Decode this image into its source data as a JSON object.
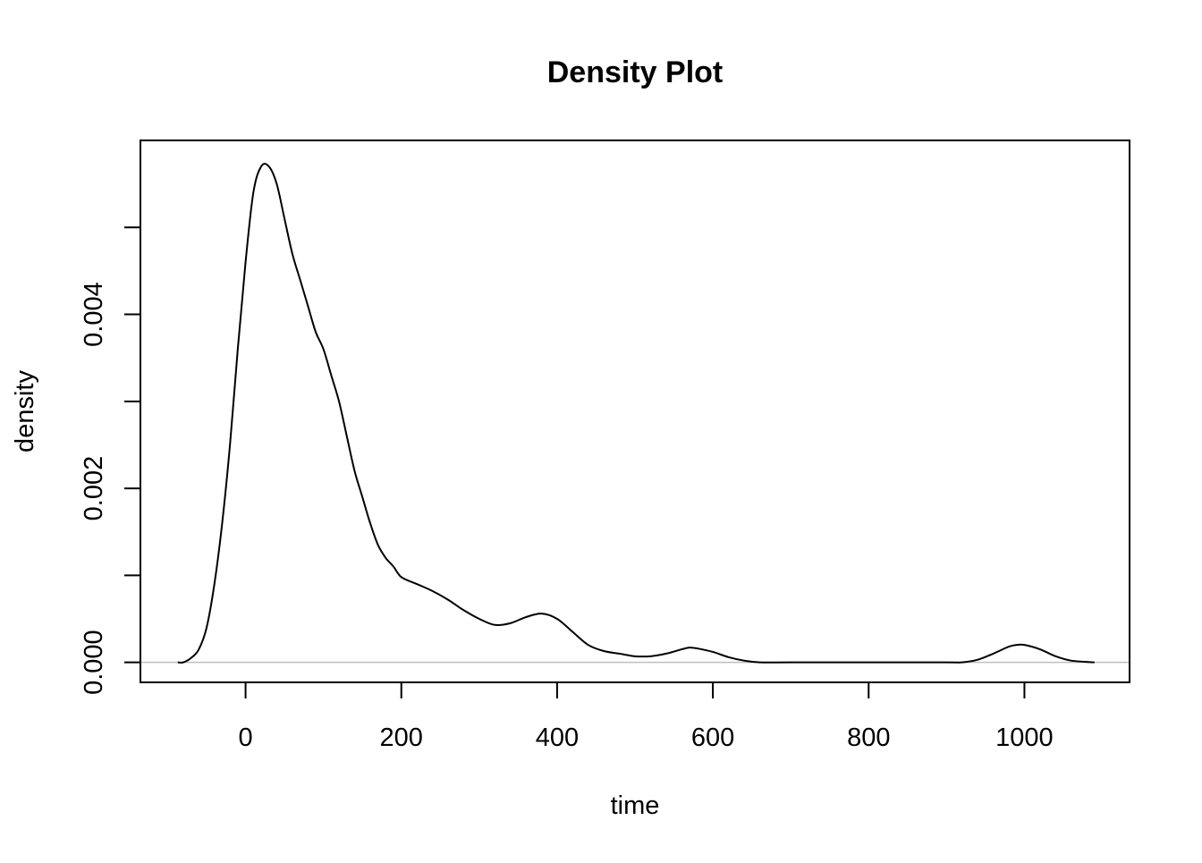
{
  "chart_data": {
    "type": "line",
    "title": "Density Plot",
    "xlabel": "time",
    "ylabel": "density",
    "xlim": [
      -135,
      1135
    ],
    "ylim": [
      -0.00023,
      0.006
    ],
    "x_ticks": [
      0,
      200,
      400,
      600,
      800,
      1000
    ],
    "x_tick_labels": [
      "0",
      "200",
      "400",
      "600",
      "800",
      "1000"
    ],
    "y_ticks": [
      0.0,
      0.001,
      0.002,
      0.003,
      0.004,
      0.005
    ],
    "y_tick_labels": [
      "0.000",
      "",
      "0.002",
      "",
      "0.004",
      ""
    ],
    "baseline": 0,
    "grid": false,
    "legend": "none",
    "colors": {
      "line": "#000000",
      "baseline": "#bebebe",
      "frame": "#000000",
      "background": "#ffffff"
    },
    "series": [
      {
        "x": [
          -87,
          -80,
          -70,
          -60,
          -50,
          -40,
          -30,
          -20,
          -10,
          0,
          10,
          20,
          30,
          40,
          50,
          60,
          70,
          80,
          90,
          100,
          110,
          120,
          130,
          140,
          150,
          160,
          170,
          180,
          190,
          200,
          220,
          240,
          260,
          280,
          300,
          320,
          340,
          360,
          380,
          400,
          420,
          440,
          460,
          480,
          500,
          520,
          540,
          560,
          570,
          580,
          600,
          620,
          640,
          660,
          700,
          800,
          900,
          920,
          940,
          960,
          980,
          990,
          1000,
          1020,
          1040,
          1060,
          1090
        ],
        "y": [
          0.0,
          0.0,
          5e-05,
          0.00015,
          0.0004,
          0.0009,
          0.0016,
          0.0025,
          0.0036,
          0.0046,
          0.0054,
          0.0057,
          0.0057,
          0.0055,
          0.0051,
          0.0047,
          0.0044,
          0.0041,
          0.0038,
          0.0036,
          0.0033,
          0.003,
          0.0026,
          0.0022,
          0.0019,
          0.0016,
          0.00135,
          0.0012,
          0.0011,
          0.00098,
          0.0009,
          0.00082,
          0.00072,
          0.0006,
          0.0005,
          0.00043,
          0.00045,
          0.00052,
          0.00056,
          0.0005,
          0.00035,
          0.0002,
          0.00013,
          0.0001,
          7e-05,
          7e-05,
          0.0001,
          0.00015,
          0.00017,
          0.00016,
          0.00012,
          6e-05,
          2e-05,
          0.0,
          0.0,
          0.0,
          0.0,
          0.0,
          3e-05,
          0.0001,
          0.00018,
          0.0002,
          0.0002,
          0.00015,
          7e-05,
          2e-05,
          0.0
        ]
      }
    ]
  }
}
